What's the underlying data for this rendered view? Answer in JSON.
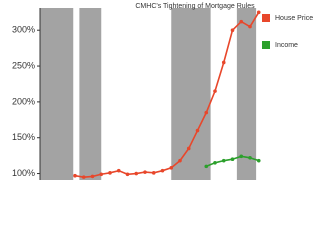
{
  "chart_data": {
    "type": "line",
    "title": "CMHC's Tightening of Mortgage Rules",
    "x": [
      4,
      5,
      6,
      7,
      8,
      9,
      10,
      11,
      12,
      13,
      14,
      15,
      16,
      17,
      18,
      19,
      20,
      21,
      22,
      23,
      24,
      25
    ],
    "xlim": [
      0,
      32
    ],
    "series": [
      {
        "name": "House Price",
        "color": "#e8472b",
        "values": [
          97,
          95,
          96,
          99,
          101,
          104,
          99,
          100,
          102,
          101,
          104,
          108,
          118,
          135,
          160,
          185,
          215,
          255,
          300,
          312,
          305,
          325
        ]
      },
      {
        "name": "Income",
        "color": "#2ca02c",
        "values": [
          null,
          null,
          null,
          null,
          null,
          null,
          null,
          null,
          null,
          null,
          null,
          null,
          null,
          null,
          null,
          110,
          115,
          118,
          120,
          124,
          122,
          118
        ]
      }
    ],
    "shaded_ranges": [
      [
        0,
        3.8
      ],
      [
        4.5,
        7
      ],
      [
        15,
        19.5
      ],
      [
        22.5,
        24.7
      ]
    ],
    "shade_color": "#a3a3a3",
    "ylim": [
      91,
      331
    ],
    "yticks": [
      {
        "value": 100,
        "label": "100%"
      },
      {
        "value": 150,
        "label": "150%"
      },
      {
        "value": 200,
        "label": "200%"
      },
      {
        "value": 250,
        "label": "250%"
      },
      {
        "value": 300,
        "label": "300%"
      }
    ]
  }
}
